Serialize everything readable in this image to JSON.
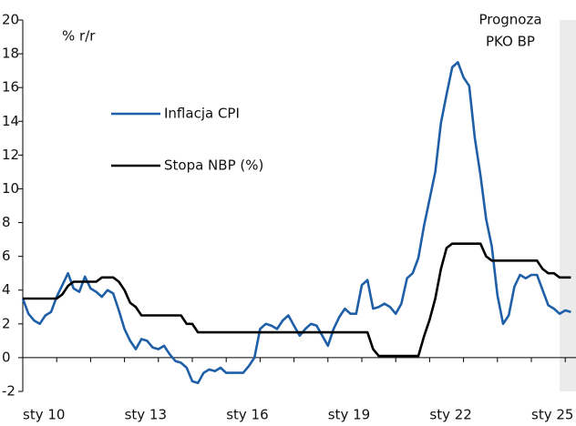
{
  "chart_data": {
    "type": "line",
    "y_label": "% r/r",
    "annotation": [
      "Prognoza",
      "PKO BP"
    ],
    "forecast_from": 95,
    "categories": [
      "sty 10",
      null,
      null,
      null,
      null,
      null,
      null,
      null,
      null,
      null,
      null,
      null,
      null,
      null,
      null,
      null,
      null,
      null,
      "sty 13",
      null,
      null,
      null,
      null,
      null,
      null,
      null,
      null,
      null,
      null,
      null,
      null,
      null,
      null,
      null,
      null,
      null,
      "sty 16",
      null,
      null,
      null,
      null,
      null,
      null,
      null,
      null,
      null,
      null,
      null,
      null,
      null,
      null,
      null,
      null,
      null,
      "sty 19",
      null,
      null,
      null,
      null,
      null,
      null,
      null,
      null,
      null,
      null,
      null,
      null,
      null,
      null,
      null,
      null,
      null,
      "sty 22",
      null,
      null,
      null,
      null,
      null,
      null,
      null,
      null,
      null,
      null,
      null,
      null,
      null,
      null,
      null,
      null,
      null,
      "sty 25",
      null,
      null,
      null,
      null,
      null,
      null,
      null
    ],
    "series": [
      {
        "name": "Inflacja CPI",
        "color": "#1f5fa8",
        "values": [
          3.5,
          2.6,
          2.2,
          2.0,
          2.5,
          2.7,
          3.6,
          4.3,
          5.0,
          4.1,
          3.9,
          4.8,
          4.1,
          3.9,
          3.6,
          4.0,
          3.8,
          2.8,
          1.7,
          1.0,
          0.5,
          1.1,
          1.0,
          0.6,
          0.5,
          0.7,
          0.2,
          -0.2,
          -0.3,
          -0.6,
          -1.4,
          -1.5,
          -0.9,
          -0.7,
          -0.8,
          -0.6,
          -0.9,
          -0.9,
          -0.9,
          -0.9,
          -0.5,
          0.0,
          1.7,
          2.0,
          1.9,
          1.7,
          2.2,
          2.5,
          1.9,
          1.3,
          1.7,
          2.0,
          1.9,
          1.3,
          0.7,
          1.7,
          2.4,
          2.9,
          2.6,
          2.6,
          4.3,
          4.6,
          2.9,
          3.0,
          3.2,
          3.0,
          2.6,
          3.2,
          4.7,
          5.0,
          5.9,
          7.8,
          9.4,
          11.0,
          13.9,
          15.6,
          17.2,
          17.5,
          16.6,
          16.1,
          13.0,
          10.8,
          8.2,
          6.6,
          3.7,
          2.0,
          2.5,
          4.2,
          4.9,
          4.7,
          4.9,
          4.9,
          4.0,
          3.1,
          2.9,
          2.6,
          2.8,
          2.7
        ]
      },
      {
        "name": "Stopa NBP (%)",
        "color": "#000000",
        "values": [
          3.5,
          3.5,
          3.5,
          3.5,
          3.5,
          3.5,
          3.5,
          3.75,
          4.25,
          4.5,
          4.5,
          4.5,
          4.5,
          4.5,
          4.75,
          4.75,
          4.75,
          4.5,
          4.0,
          3.25,
          3.0,
          2.5,
          2.5,
          2.5,
          2.5,
          2.5,
          2.5,
          2.5,
          2.5,
          2.0,
          2.0,
          1.5,
          1.5,
          1.5,
          1.5,
          1.5,
          1.5,
          1.5,
          1.5,
          1.5,
          1.5,
          1.5,
          1.5,
          1.5,
          1.5,
          1.5,
          1.5,
          1.5,
          1.5,
          1.5,
          1.5,
          1.5,
          1.5,
          1.5,
          1.5,
          1.5,
          1.5,
          1.5,
          1.5,
          1.5,
          1.5,
          1.5,
          0.5,
          0.1,
          0.1,
          0.1,
          0.1,
          0.1,
          0.1,
          0.1,
          0.1,
          1.25,
          2.25,
          3.5,
          5.25,
          6.5,
          6.75,
          6.75,
          6.75,
          6.75,
          6.75,
          6.75,
          6.0,
          5.75,
          5.75,
          5.75,
          5.75,
          5.75,
          5.75,
          5.75,
          5.75,
          5.75,
          5.25,
          5.0,
          5.0,
          4.75,
          4.75,
          4.75
        ]
      }
    ],
    "ylim": [
      -2,
      20
    ],
    "yticks": [
      -2,
      0,
      2,
      4,
      6,
      8,
      10,
      12,
      14,
      16,
      18,
      20
    ]
  }
}
